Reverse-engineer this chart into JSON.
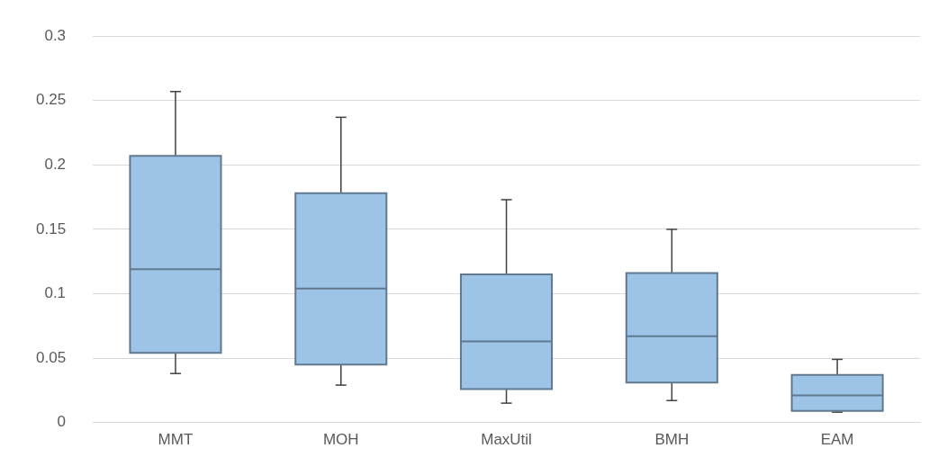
{
  "chart_data": {
    "type": "box",
    "categories": [
      "MMT",
      "MOH",
      "MaxUtil",
      "BMH",
      "EAM"
    ],
    "boxes": [
      {
        "low": 0.038,
        "q1": 0.054,
        "median": 0.119,
        "q3": 0.207,
        "high": 0.257
      },
      {
        "low": 0.029,
        "q1": 0.045,
        "median": 0.104,
        "q3": 0.178,
        "high": 0.237
      },
      {
        "low": 0.015,
        "q1": 0.026,
        "median": 0.063,
        "q3": 0.115,
        "high": 0.173
      },
      {
        "low": 0.017,
        "q1": 0.031,
        "median": 0.067,
        "q3": 0.116,
        "high": 0.15
      },
      {
        "low": 0.008,
        "q1": 0.009,
        "median": 0.021,
        "q3": 0.037,
        "high": 0.049
      }
    ],
    "color": "#9dc3e6",
    "ylim": [
      0,
      0.3
    ],
    "yticks": [
      0,
      0.05,
      0.1,
      0.15,
      0.2,
      0.25,
      0.3
    ],
    "grid": "y",
    "legend": false
  }
}
